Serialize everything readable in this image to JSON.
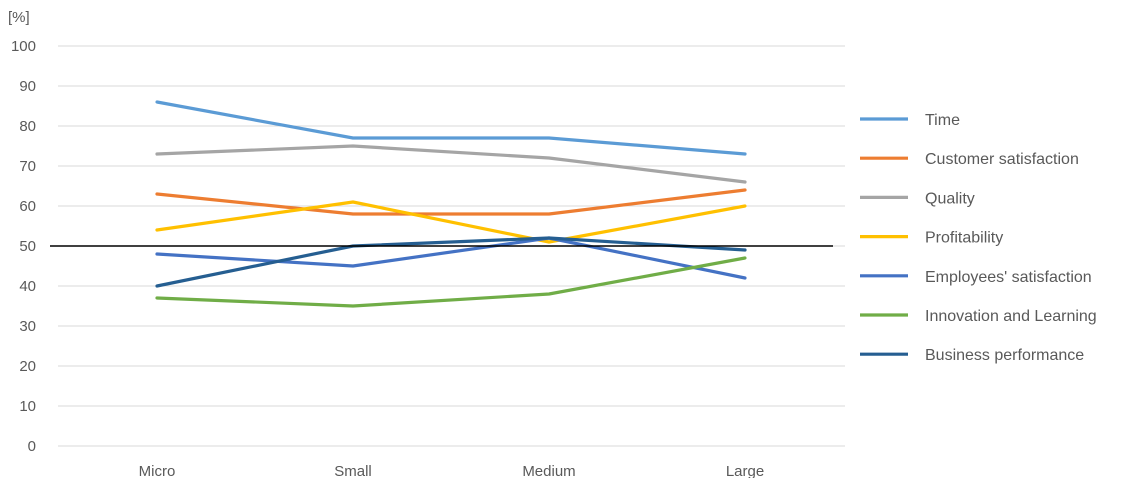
{
  "chart_data": {
    "type": "line",
    "title": "",
    "xlabel": "",
    "ylabel": "[%]",
    "ylim": [
      0,
      100
    ],
    "yticks": [
      0,
      10,
      20,
      30,
      40,
      50,
      60,
      70,
      80,
      90,
      100
    ],
    "categories": [
      "Micro",
      "Small",
      "Medium",
      "Large"
    ],
    "grid": true,
    "legend_position": "right",
    "reference_line": {
      "value": 50,
      "color": "#000000"
    },
    "series": [
      {
        "name": "Time",
        "color": "#5b9bd5",
        "values": [
          86,
          77,
          77,
          73
        ]
      },
      {
        "name": "Customer satisfaction",
        "color": "#ed7d31",
        "values": [
          63,
          58,
          58,
          64
        ]
      },
      {
        "name": "Quality",
        "color": "#a5a5a5",
        "values": [
          73,
          75,
          72,
          66
        ]
      },
      {
        "name": "Profitability",
        "color": "#ffc000",
        "values": [
          54,
          61,
          51,
          60
        ]
      },
      {
        "name": "Employees' satisfaction",
        "color": "#4472c4",
        "values": [
          48,
          45,
          52,
          42
        ]
      },
      {
        "name": "Innovation and Learning",
        "color": "#70ad47",
        "values": [
          37,
          35,
          38,
          47
        ]
      },
      {
        "name": "Business performance",
        "color": "#255e91",
        "values": [
          40,
          50,
          52,
          49
        ]
      }
    ]
  }
}
